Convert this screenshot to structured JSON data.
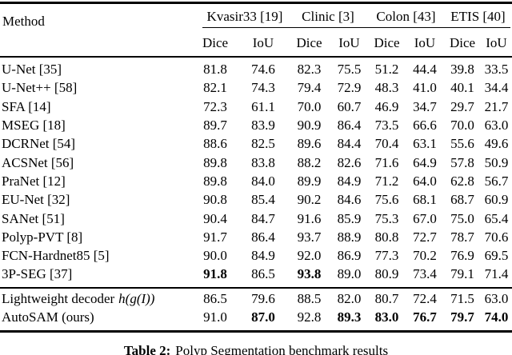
{
  "page": {
    "background": "#ffffff",
    "text_color": "#000000"
  },
  "table": {
    "method_header": "Method",
    "groups": [
      {
        "label": "Kvasir33 [19]"
      },
      {
        "label": "Clinic [3]"
      },
      {
        "label": "Colon [43]"
      },
      {
        "label": "ETIS [40]"
      }
    ],
    "metrics": [
      "Dice",
      "IoU"
    ],
    "rows": [
      {
        "method": "U-Net [35]",
        "values": [
          "81.8",
          "74.6",
          "82.3",
          "75.5",
          "51.2",
          "44.4",
          "39.8",
          "33.5"
        ],
        "bold": []
      },
      {
        "method": "U-Net++ [58]",
        "values": [
          "82.1",
          "74.3",
          "79.4",
          "72.9",
          "48.3",
          "41.0",
          "40.1",
          "34.4"
        ],
        "bold": []
      },
      {
        "method": "SFA [14]",
        "values": [
          "72.3",
          "61.1",
          "70.0",
          "60.7",
          "46.9",
          "34.7",
          "29.7",
          "21.7"
        ],
        "bold": []
      },
      {
        "method": "MSEG [18]",
        "values": [
          "89.7",
          "83.9",
          "90.9",
          "86.4",
          "73.5",
          "66.6",
          "70.0",
          "63.0"
        ],
        "bold": []
      },
      {
        "method": "DCRNet [54]",
        "values": [
          "88.6",
          "82.5",
          "89.6",
          "84.4",
          "70.4",
          "63.1",
          "55.6",
          "49.6"
        ],
        "bold": []
      },
      {
        "method": "ACSNet [56]",
        "values": [
          "89.8",
          "83.8",
          "88.2",
          "82.6",
          "71.6",
          "64.9",
          "57.8",
          "50.9"
        ],
        "bold": []
      },
      {
        "method": "PraNet [12]",
        "values": [
          "89.8",
          "84.0",
          "89.9",
          "84.9",
          "71.2",
          "64.0",
          "62.8",
          "56.7"
        ],
        "bold": []
      },
      {
        "method": "EU-Net [32]",
        "values": [
          "90.8",
          "85.4",
          "90.2",
          "84.6",
          "75.6",
          "68.1",
          "68.7",
          "60.9"
        ],
        "bold": []
      },
      {
        "method": "SANet [51]",
        "values": [
          "90.4",
          "84.7",
          "91.6",
          "85.9",
          "75.3",
          "67.0",
          "75.0",
          "65.4"
        ],
        "bold": []
      },
      {
        "method": "Polyp-PVT [8]",
        "values": [
          "91.7",
          "86.4",
          "93.7",
          "88.9",
          "80.8",
          "72.7",
          "78.7",
          "70.6"
        ],
        "bold": []
      },
      {
        "method": "FCN-Hardnet85 [5]",
        "values": [
          "90.0",
          "84.9",
          "92.0",
          "86.9",
          "77.3",
          "70.2",
          "76.9",
          "69.5"
        ],
        "bold": []
      },
      {
        "method": "3P-SEG [37]",
        "values": [
          "91.8",
          "86.5",
          "93.8",
          "89.0",
          "80.9",
          "73.4",
          "79.1",
          "71.4"
        ],
        "bold": [
          0,
          2
        ]
      }
    ],
    "footer_rows": [
      {
        "method": "Lightweight decoder",
        "method_math": "h(g(I))",
        "values": [
          "86.5",
          "79.6",
          "88.5",
          "82.0",
          "80.7",
          "72.4",
          "71.5",
          "63.0"
        ],
        "bold": []
      },
      {
        "method": "AutoSAM (ours)",
        "values": [
          "91.0",
          "87.0",
          "92.8",
          "89.3",
          "83.0",
          "76.7",
          "79.7",
          "74.0"
        ],
        "bold": [
          1,
          3,
          4,
          5,
          6,
          7
        ]
      }
    ]
  },
  "caption": {
    "label": "Table 2:",
    "text": "Polyp Segmentation benchmark results"
  }
}
